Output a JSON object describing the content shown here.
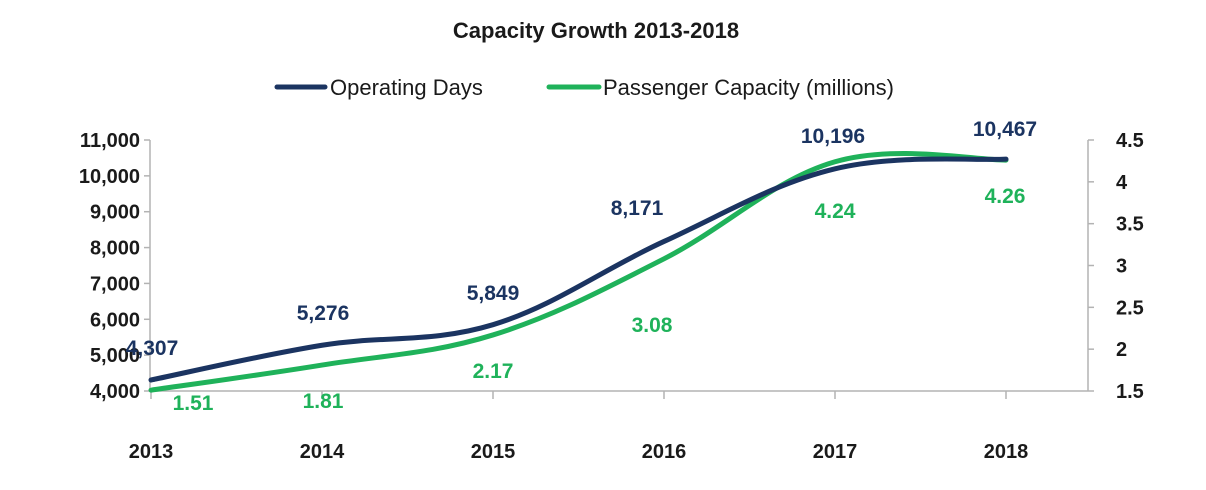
{
  "chart_data": {
    "type": "line",
    "title": "Capacity Growth 2013-2018",
    "categories": [
      "2013",
      "2014",
      "2015",
      "2016",
      "2017",
      "2018"
    ],
    "series": [
      {
        "name": "Operating Days",
        "axis": "left",
        "color": "#1b3461",
        "values": [
          4307,
          5276,
          5849,
          8171,
          10196,
          10467
        ],
        "labels": [
          "4,307",
          "5,276",
          "5,849",
          "8,171",
          "10,196",
          "10,467"
        ]
      },
      {
        "name": "Passenger Capacity (millions)",
        "axis": "right",
        "color": "#1fb25a",
        "values": [
          1.51,
          1.81,
          2.17,
          3.08,
          4.24,
          4.26
        ],
        "labels": [
          "1.51",
          "1.81",
          "2.17",
          "3.08",
          "4.24",
          "4.26"
        ]
      }
    ],
    "y_left": {
      "min": 4000,
      "max": 11000,
      "ticks": [
        4000,
        5000,
        6000,
        7000,
        8000,
        9000,
        10000,
        11000
      ],
      "tick_labels": [
        "4,000",
        "5,000",
        "6,000",
        "7,000",
        "8,000",
        "9,000",
        "10,000",
        "11,000"
      ]
    },
    "y_right": {
      "min": 1.5,
      "max": 4.5,
      "ticks": [
        1.5,
        2,
        2.5,
        3,
        3.5,
        4,
        4.5
      ],
      "tick_labels": [
        "1.5",
        "2",
        "2.5",
        "3",
        "3.5",
        "4",
        "4.5"
      ]
    },
    "legend_position": "top-center",
    "grid": false,
    "axis_color": "#b3b3b3"
  }
}
